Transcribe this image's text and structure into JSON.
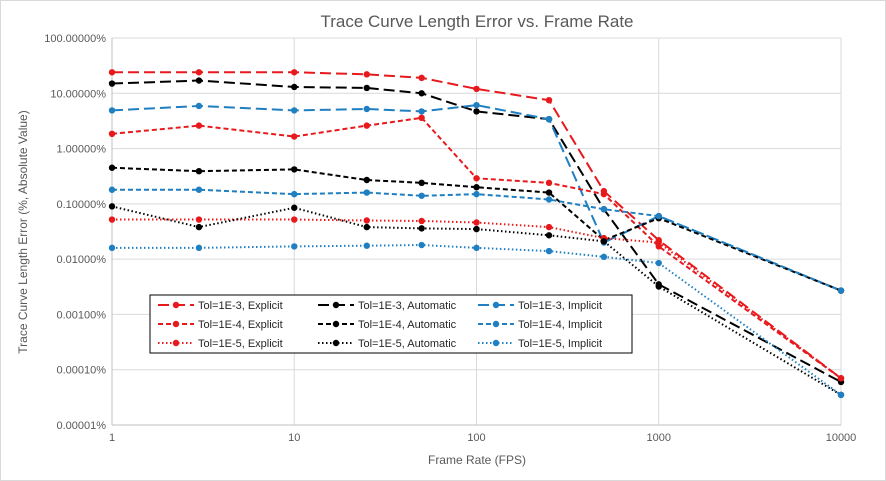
{
  "chart_data": {
    "type": "line",
    "title": "Trace Curve Length Error vs. Frame Rate",
    "xlabel": "Frame Rate (FPS)",
    "ylabel": "Trace Curve Length Error (%, Absolute Value)",
    "x_scale": "log",
    "y_scale": "log",
    "xlim": [
      1,
      10000
    ],
    "ylim": [
      1e-05,
      100
    ],
    "x_ticks": [
      {
        "value": 1,
        "label": "1"
      },
      {
        "value": 10,
        "label": "10"
      },
      {
        "value": 100,
        "label": "100"
      },
      {
        "value": 1000,
        "label": "1000"
      },
      {
        "value": 10000,
        "label": "10000"
      }
    ],
    "y_ticks": [
      {
        "value": 100,
        "label": "100.00000%"
      },
      {
        "value": 10,
        "label": "10.00000%"
      },
      {
        "value": 1,
        "label": "1.00000%"
      },
      {
        "value": 0.1,
        "label": "0.10000%"
      },
      {
        "value": 0.01,
        "label": "0.01000%"
      },
      {
        "value": 0.001,
        "label": "0.00100%"
      },
      {
        "value": 0.0001,
        "label": "0.00010%"
      },
      {
        "value": 1e-05,
        "label": "0.00001%"
      }
    ],
    "grid": true,
    "legend_position": "bottom-left inside",
    "series": [
      {
        "name": "Tol=1E-3, Explicit",
        "color": "#e8191c",
        "dash": "long-dash",
        "x": [
          1,
          3,
          10,
          25,
          50,
          100,
          250,
          500,
          1000,
          10000
        ],
        "y": [
          24,
          24,
          24,
          22,
          19,
          12,
          7.5,
          0.17,
          0.022,
          7e-05
        ]
      },
      {
        "name": "Tol=1E-3, Automatic",
        "color": "#000000",
        "dash": "long-dash",
        "x": [
          1,
          3,
          10,
          25,
          50,
          100,
          250,
          500,
          1000,
          10000
        ],
        "y": [
          15,
          17,
          13,
          12.5,
          10,
          4.7,
          3.4,
          0.08,
          0.0035,
          6e-05
        ]
      },
      {
        "name": "Tol=1E-3, Implicit",
        "color": "#1f7fc1",
        "dash": "long-dash",
        "x": [
          1,
          3,
          10,
          25,
          50,
          100,
          250,
          500,
          1000,
          10000
        ],
        "y": [
          4.9,
          5.9,
          4.9,
          5.2,
          4.7,
          6.1,
          3.4,
          0.02,
          0.06,
          0.0027
        ]
      },
      {
        "name": "Tol=1E-4, Explicit",
        "color": "#e8191c",
        "dash": "short-dash",
        "x": [
          1,
          3,
          10,
          25,
          50,
          100,
          250,
          500,
          1000,
          10000
        ],
        "y": [
          1.85,
          2.6,
          1.65,
          2.6,
          3.6,
          0.29,
          0.24,
          0.15,
          0.017,
          7e-05
        ]
      },
      {
        "name": "Tol=1E-4, Automatic",
        "color": "#000000",
        "dash": "short-dash",
        "x": [
          1,
          3,
          10,
          25,
          50,
          100,
          250,
          500,
          1000,
          10000
        ],
        "y": [
          0.45,
          0.39,
          0.42,
          0.27,
          0.24,
          0.2,
          0.16,
          0.022,
          0.055,
          0.0027
        ]
      },
      {
        "name": "Tol=1E-4, Implicit",
        "color": "#1f7fc1",
        "dash": "short-dash",
        "x": [
          1,
          3,
          10,
          25,
          50,
          100,
          250,
          500,
          1000,
          10000
        ],
        "y": [
          0.18,
          0.18,
          0.15,
          0.16,
          0.14,
          0.15,
          0.12,
          0.08,
          0.06,
          0.0027
        ]
      },
      {
        "name": "Tol=1E-5, Explicit",
        "color": "#e8191c",
        "dash": "dot",
        "x": [
          1,
          3,
          10,
          25,
          50,
          100,
          250,
          500,
          1000,
          10000
        ],
        "y": [
          0.052,
          0.052,
          0.052,
          0.05,
          0.049,
          0.046,
          0.038,
          0.024,
          0.02,
          7e-05
        ]
      },
      {
        "name": "Tol=1E-5, Automatic",
        "color": "#000000",
        "dash": "dot",
        "x": [
          1,
          3,
          10,
          25,
          50,
          100,
          250,
          500,
          1000,
          10000
        ],
        "y": [
          0.09,
          0.038,
          0.085,
          0.038,
          0.036,
          0.035,
          0.027,
          0.021,
          0.0032,
          3.5e-05
        ]
      },
      {
        "name": "Tol=1E-5, Implicit",
        "color": "#1f7fc1",
        "dash": "dot",
        "x": [
          1,
          3,
          10,
          25,
          50,
          100,
          250,
          500,
          1000,
          10000
        ],
        "y": [
          0.016,
          0.016,
          0.017,
          0.0175,
          0.018,
          0.016,
          0.014,
          0.011,
          0.0085,
          3.5e-05
        ]
      }
    ]
  }
}
